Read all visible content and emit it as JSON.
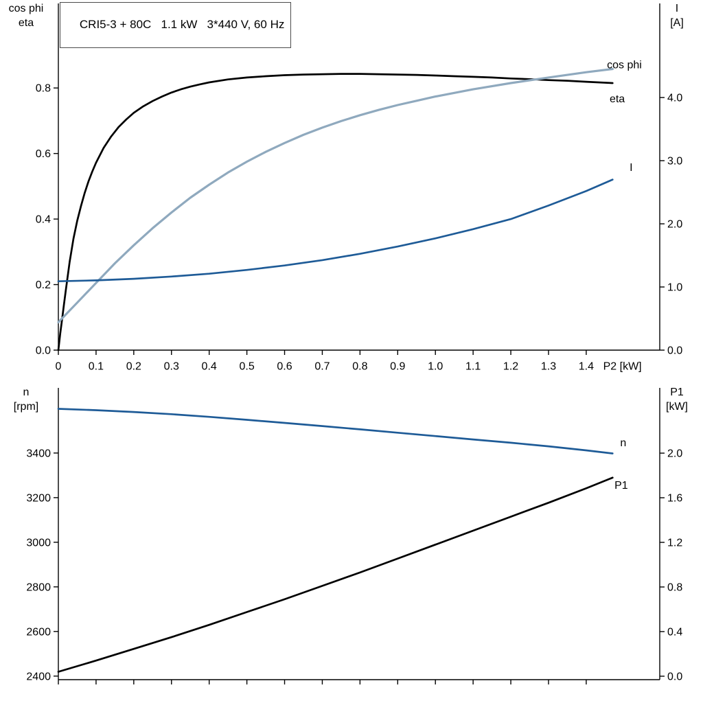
{
  "title_box": {
    "text": "CRI5-3 + 80C   1.1 kW   3*440 V, 60 Hz"
  },
  "colors": {
    "black": "#000000",
    "light_blue": "#8fa9be",
    "dark_blue": "#1e5b97"
  },
  "chart_data": [
    {
      "type": "line",
      "x_axis": {
        "title": "P2 [kW]",
        "title_x": 1.445,
        "range": [
          0,
          1.595
        ],
        "ticks": [
          {
            "v": 0,
            "label": "0"
          },
          {
            "v": 0.1,
            "label": "0.1"
          },
          {
            "v": 0.2,
            "label": "0.2"
          },
          {
            "v": 0.3,
            "label": "0.3"
          },
          {
            "v": 0.4,
            "label": "0.4"
          },
          {
            "v": 0.5,
            "label": "0.5"
          },
          {
            "v": 0.6,
            "label": "0.6"
          },
          {
            "v": 0.7,
            "label": "0.7"
          },
          {
            "v": 0.8,
            "label": "0.8"
          },
          {
            "v": 0.9,
            "label": "0.9"
          },
          {
            "v": 1,
            "label": "1.0"
          },
          {
            "v": 1.1,
            "label": "1.1"
          },
          {
            "v": 1.2,
            "label": "1.2"
          },
          {
            "v": 1.3,
            "label": "1.3"
          },
          {
            "v": 1.4,
            "label": "1.4"
          }
        ]
      },
      "left_axis": {
        "title_lines": [
          "cos phi",
          "eta"
        ],
        "range": [
          0,
          1.058
        ],
        "ticks": [
          {
            "v": 0,
            "label": "0.0"
          },
          {
            "v": 0.2,
            "label": "0.2"
          },
          {
            "v": 0.4,
            "label": "0.4"
          },
          {
            "v": 0.6,
            "label": "0.6"
          },
          {
            "v": 0.8,
            "label": "0.8"
          }
        ]
      },
      "right_axis": {
        "title_lines": [
          "I",
          "[A]"
        ],
        "range": [
          0,
          5.49
        ],
        "ticks": [
          {
            "v": 0,
            "label": "0.0"
          },
          {
            "v": 1,
            "label": "1.0"
          },
          {
            "v": 2,
            "label": "2.0"
          },
          {
            "v": 3,
            "label": "3.0"
          },
          {
            "v": 4,
            "label": "4.0"
          }
        ]
      },
      "series": [
        {
          "name": "eta",
          "label": "eta",
          "color": "black",
          "axis": "left",
          "label_x": 1.462,
          "label_y": 0.768,
          "points": [
            [
              0,
              0
            ],
            [
              0.005,
              0.05
            ],
            [
              0.01,
              0.095
            ],
            [
              0.015,
              0.14
            ],
            [
              0.02,
              0.185
            ],
            [
              0.03,
              0.27
            ],
            [
              0.04,
              0.34
            ],
            [
              0.05,
              0.395
            ],
            [
              0.06,
              0.44
            ],
            [
              0.07,
              0.48
            ],
            [
              0.08,
              0.515
            ],
            [
              0.09,
              0.545
            ],
            [
              0.1,
              0.572
            ],
            [
              0.12,
              0.617
            ],
            [
              0.14,
              0.652
            ],
            [
              0.16,
              0.681
            ],
            [
              0.18,
              0.704
            ],
            [
              0.2,
              0.724
            ],
            [
              0.225,
              0.744
            ],
            [
              0.25,
              0.76
            ],
            [
              0.275,
              0.774
            ],
            [
              0.3,
              0.786
            ],
            [
              0.325,
              0.796
            ],
            [
              0.35,
              0.804
            ],
            [
              0.375,
              0.811
            ],
            [
              0.4,
              0.817
            ],
            [
              0.45,
              0.826
            ],
            [
              0.5,
              0.832
            ],
            [
              0.55,
              0.836
            ],
            [
              0.6,
              0.839
            ],
            [
              0.65,
              0.841
            ],
            [
              0.7,
              0.842
            ],
            [
              0.75,
              0.843
            ],
            [
              0.8,
              0.843
            ],
            [
              0.85,
              0.842
            ],
            [
              0.9,
              0.841
            ],
            [
              0.95,
              0.84
            ],
            [
              1,
              0.838
            ],
            [
              1.05,
              0.836
            ],
            [
              1.1,
              0.834
            ],
            [
              1.15,
              0.832
            ],
            [
              1.2,
              0.829
            ],
            [
              1.25,
              0.827
            ],
            [
              1.3,
              0.824
            ],
            [
              1.35,
              0.822
            ],
            [
              1.4,
              0.819
            ],
            [
              1.47,
              0.815
            ]
          ]
        },
        {
          "name": "cos_phi",
          "label": "cos phi",
          "color": "light_blue",
          "axis": "left",
          "label_x": 1.455,
          "label_y": 0.872,
          "points": [
            [
              0,
              0.085
            ],
            [
              0.05,
              0.145
            ],
            [
              0.1,
              0.205
            ],
            [
              0.15,
              0.265
            ],
            [
              0.2,
              0.32
            ],
            [
              0.25,
              0.372
            ],
            [
              0.3,
              0.42
            ],
            [
              0.35,
              0.465
            ],
            [
              0.4,
              0.505
            ],
            [
              0.45,
              0.542
            ],
            [
              0.5,
              0.575
            ],
            [
              0.55,
              0.605
            ],
            [
              0.6,
              0.632
            ],
            [
              0.65,
              0.657
            ],
            [
              0.7,
              0.679
            ],
            [
              0.75,
              0.699
            ],
            [
              0.8,
              0.717
            ],
            [
              0.85,
              0.733
            ],
            [
              0.9,
              0.748
            ],
            [
              0.95,
              0.761
            ],
            [
              1,
              0.774
            ],
            [
              1.1,
              0.796
            ],
            [
              1.2,
              0.815
            ],
            [
              1.3,
              0.832
            ],
            [
              1.4,
              0.848
            ],
            [
              1.47,
              0.858
            ]
          ]
        },
        {
          "name": "I",
          "label": "I",
          "color": "dark_blue",
          "axis": "right",
          "label_x": 1.515,
          "label_y": 2.9,
          "points": [
            [
              0,
              1.09
            ],
            [
              0.1,
              1.105
            ],
            [
              0.2,
              1.13
            ],
            [
              0.3,
              1.165
            ],
            [
              0.4,
              1.21
            ],
            [
              0.5,
              1.27
            ],
            [
              0.6,
              1.34
            ],
            [
              0.7,
              1.425
            ],
            [
              0.8,
              1.525
            ],
            [
              0.9,
              1.64
            ],
            [
              1,
              1.77
            ],
            [
              1.1,
              1.915
            ],
            [
              1.2,
              2.075
            ],
            [
              1.3,
              2.29
            ],
            [
              1.4,
              2.52
            ],
            [
              1.47,
              2.7
            ]
          ]
        }
      ]
    },
    {
      "type": "line",
      "x_axis": {
        "title": "",
        "range": [
          0,
          1.595
        ],
        "ticks": [
          {
            "v": 0
          },
          {
            "v": 0.1
          },
          {
            "v": 0.2
          },
          {
            "v": 0.3
          },
          {
            "v": 0.4
          },
          {
            "v": 0.5
          },
          {
            "v": 0.6
          },
          {
            "v": 0.7
          },
          {
            "v": 0.8
          },
          {
            "v": 0.9
          },
          {
            "v": 1
          },
          {
            "v": 1.1
          },
          {
            "v": 1.2
          },
          {
            "v": 1.3
          },
          {
            "v": 1.4
          }
        ]
      },
      "left_axis": {
        "title_lines": [
          "n",
          "[rpm]"
        ],
        "range": [
          2384,
          3692
        ],
        "ticks": [
          {
            "v": 2400,
            "label": "2400"
          },
          {
            "v": 2600,
            "label": "2600"
          },
          {
            "v": 2800,
            "label": "2800"
          },
          {
            "v": 3000,
            "label": "3000"
          },
          {
            "v": 3200,
            "label": "3200"
          },
          {
            "v": 3400,
            "label": "3400"
          }
        ]
      },
      "right_axis": {
        "title_lines": [
          "P1",
          "[kW]"
        ],
        "range": [
          -0.031,
          2.585
        ],
        "ticks": [
          {
            "v": 0,
            "label": "0.0"
          },
          {
            "v": 0.4,
            "label": "0.4"
          },
          {
            "v": 0.8,
            "label": "0.8"
          },
          {
            "v": 1.2,
            "label": "1.2"
          },
          {
            "v": 1.6,
            "label": "1.6"
          },
          {
            "v": 2,
            "label": "2.0"
          }
        ]
      },
      "series": [
        {
          "name": "n",
          "label": "n",
          "color": "dark_blue",
          "axis": "left",
          "label_x": 1.49,
          "label_y": 3448,
          "points": [
            [
              0,
              3598
            ],
            [
              0.1,
              3592
            ],
            [
              0.2,
              3584
            ],
            [
              0.3,
              3574
            ],
            [
              0.4,
              3562
            ],
            [
              0.5,
              3549
            ],
            [
              0.6,
              3535
            ],
            [
              0.7,
              3521
            ],
            [
              0.8,
              3506
            ],
            [
              0.9,
              3491
            ],
            [
              1,
              3476
            ],
            [
              1.1,
              3461
            ],
            [
              1.2,
              3446
            ],
            [
              1.3,
              3430
            ],
            [
              1.4,
              3412
            ],
            [
              1.47,
              3398
            ]
          ]
        },
        {
          "name": "P1",
          "label": "P1",
          "color": "black",
          "axis": "right",
          "label_x": 1.475,
          "label_y": 1.715,
          "points": [
            [
              0,
              0.04
            ],
            [
              0.1,
              0.14
            ],
            [
              0.2,
              0.245
            ],
            [
              0.3,
              0.35
            ],
            [
              0.4,
              0.46
            ],
            [
              0.5,
              0.575
            ],
            [
              0.6,
              0.69
            ],
            [
              0.7,
              0.81
            ],
            [
              0.8,
              0.93
            ],
            [
              0.9,
              1.055
            ],
            [
              1,
              1.18
            ],
            [
              1.1,
              1.305
            ],
            [
              1.2,
              1.43
            ],
            [
              1.3,
              1.555
            ],
            [
              1.4,
              1.685
            ],
            [
              1.47,
              1.78
            ]
          ]
        }
      ]
    }
  ]
}
